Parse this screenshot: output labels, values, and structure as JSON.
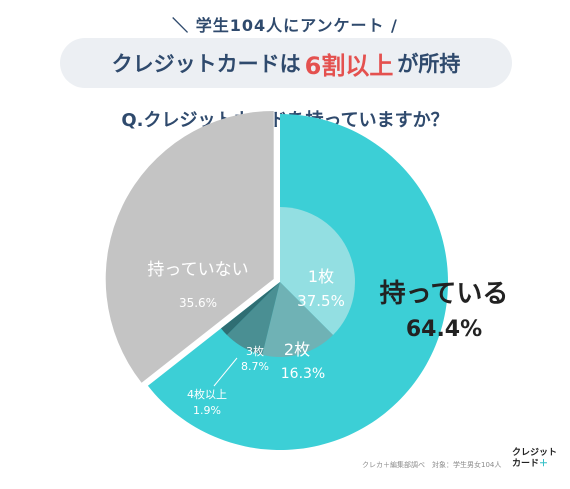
{
  "header": {
    "survey": "＼ 学生104人にアンケート /",
    "headline_pre": "クレジットカードは",
    "headline_accent": "6割以上",
    "headline_post": "が所持",
    "question": "Q.クレジットカードを持っていますか？"
  },
  "chart_data": {
    "type": "pie",
    "title": "",
    "slices": [
      {
        "label": "持っている",
        "value": 64.4,
        "value_text": "64.4%",
        "color": "#3ccfd6"
      },
      {
        "label": "持っていない",
        "value": 35.6,
        "value_text": "35.6%",
        "color": "#c4c4c4"
      }
    ],
    "inner_breakdown": {
      "parent": "持っている",
      "slices": [
        {
          "label": "1枚",
          "value": 37.5,
          "value_text": "37.5%",
          "color": "#93dfe2"
        },
        {
          "label": "2枚",
          "value": 16.3,
          "value_text": "16.3%",
          "color": "#6fb2b5"
        },
        {
          "label": "3枚",
          "value": 8.7,
          "value_text": "8.7%",
          "color": "#4a8f93"
        },
        {
          "label": "4枚以上",
          "value": 1.9,
          "value_text": "1.9%",
          "color": "#2f6e73"
        }
      ]
    }
  },
  "footer": {
    "credit": "クレカ＋編集部調べ　対象：学生男女104人",
    "logo_line1": "クレジット",
    "logo_line2": "カード",
    "logo_plus": "＋"
  },
  "colors": {
    "navy": "#2f4a6d",
    "accent": "#e4514f",
    "teal": "#3ccfd6",
    "gray": "#c4c4c4"
  }
}
